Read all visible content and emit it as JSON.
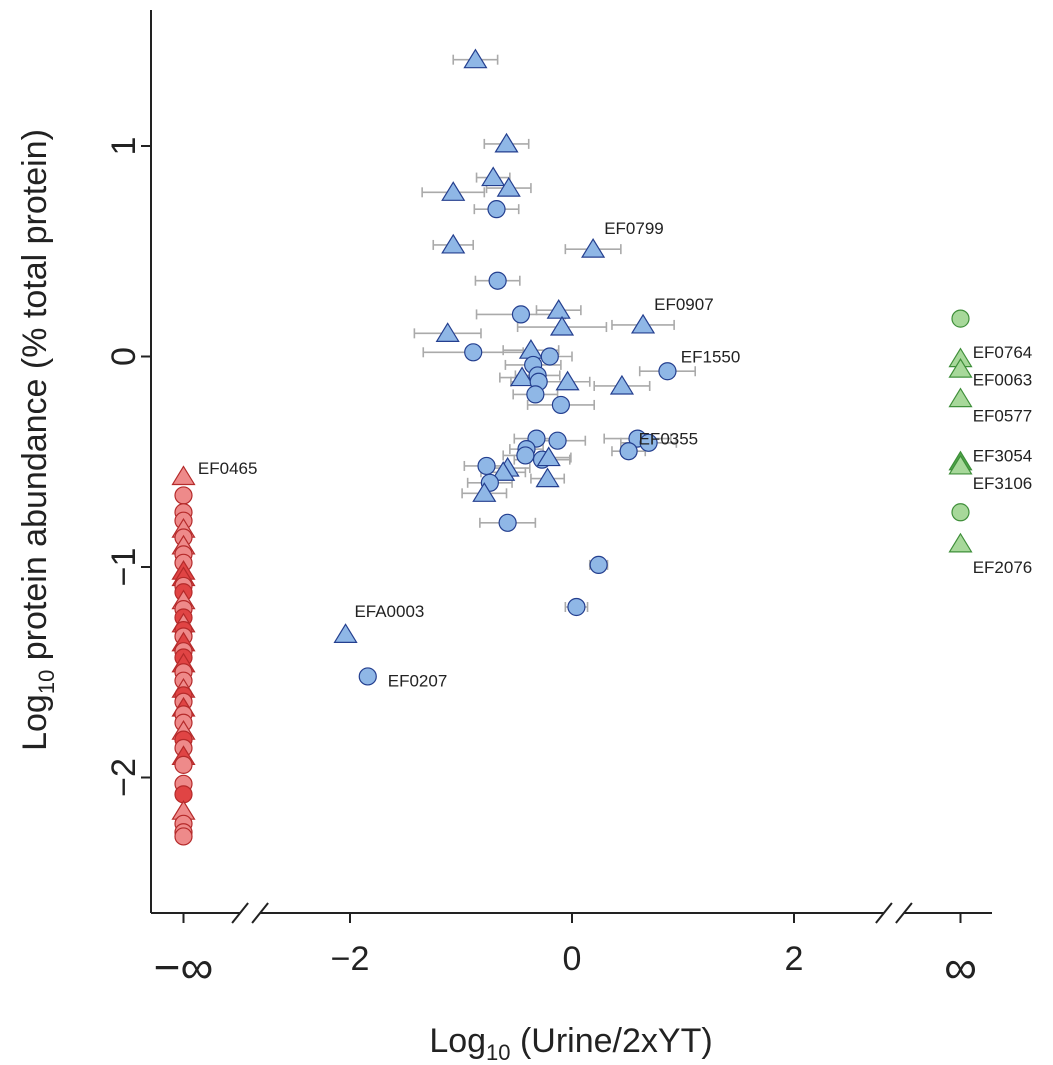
{
  "chart_data": {
    "type": "scatter",
    "title": "",
    "xlabel": {
      "main": "Log",
      "sub": "10",
      "rest": " (Urine/2xYT)"
    },
    "ylabel": {
      "main": "Log",
      "sub": "10",
      "rest": " protein abundance (% total protein)"
    },
    "xlim": [
      -3.5,
      3.8
    ],
    "ylim": [
      -2.65,
      1.7
    ],
    "x_ticks": [
      -2,
      0,
      2
    ],
    "x_tick_labels": [
      "−2",
      "0",
      "2"
    ],
    "y_ticks": [
      1,
      0,
      -1,
      -2
    ],
    "y_tick_labels": [
      "1",
      "0",
      "−1",
      "−2"
    ],
    "x_special_ticks": [
      {
        "x": -3.5,
        "label": "−∞"
      },
      {
        "x": 3.5,
        "label": "∞"
      }
    ],
    "axis_breaks": [
      -2.9,
      2.9
    ],
    "colors": {
      "blue_fill": "#8fb7e6",
      "blue_stroke": "#243f8f",
      "red_fill": "#ee8a8a",
      "red_stroke": "#b52a2a",
      "red_dark_fill": "#e04444",
      "green_fill": "#a7d89a",
      "green_stroke": "#3f8f3a",
      "green_dark_fill": "#4ea74a",
      "errorbar": "#aaaaaa"
    },
    "series": [
      {
        "group": "finite",
        "points": [
          {
            "x": -0.87,
            "y": 1.41,
            "shape": "triangle",
            "err": 0.2
          },
          {
            "x": -0.59,
            "y": 1.01,
            "shape": "triangle",
            "err": 0.2
          },
          {
            "x": -0.71,
            "y": 0.85,
            "shape": "triangle",
            "err": 0.15
          },
          {
            "x": -0.57,
            "y": 0.8,
            "shape": "triangle",
            "err": 0.2
          },
          {
            "x": -1.07,
            "y": 0.78,
            "shape": "triangle",
            "err": 0.28
          },
          {
            "x": -0.68,
            "y": 0.7,
            "shape": "circle",
            "err": 0.2
          },
          {
            "x": -1.07,
            "y": 0.53,
            "shape": "triangle",
            "err": 0.18
          },
          {
            "x": 0.19,
            "y": 0.51,
            "shape": "triangle",
            "err": 0.25
          },
          {
            "x": -0.67,
            "y": 0.36,
            "shape": "circle",
            "err": 0.2
          },
          {
            "x": -0.12,
            "y": 0.22,
            "shape": "triangle",
            "err": 0.2
          },
          {
            "x": -0.46,
            "y": 0.2,
            "shape": "circle",
            "err": 0.4
          },
          {
            "x": 0.64,
            "y": 0.15,
            "shape": "triangle",
            "err": 0.28
          },
          {
            "x": -0.09,
            "y": 0.14,
            "shape": "triangle",
            "err": 0.4
          },
          {
            "x": -1.12,
            "y": 0.11,
            "shape": "triangle",
            "err": 0.3
          },
          {
            "x": -0.89,
            "y": 0.02,
            "shape": "circle",
            "err": 0.45
          },
          {
            "x": -0.37,
            "y": 0.03,
            "shape": "triangle",
            "err": 0.25
          },
          {
            "x": -0.2,
            "y": 0.0,
            "shape": "circle",
            "err": 0.2
          },
          {
            "x": -0.35,
            "y": -0.04,
            "shape": "circle",
            "err": 0.25
          },
          {
            "x": 0.86,
            "y": -0.07,
            "shape": "circle",
            "err": 0.25
          },
          {
            "x": -0.31,
            "y": -0.09,
            "shape": "circle",
            "err": 0.2
          },
          {
            "x": -0.45,
            "y": -0.1,
            "shape": "triangle",
            "err": 0.2
          },
          {
            "x": -0.3,
            "y": -0.12,
            "shape": "circle",
            "err": 0.25
          },
          {
            "x": -0.04,
            "y": -0.12,
            "shape": "triangle",
            "err": 0.2
          },
          {
            "x": 0.45,
            "y": -0.14,
            "shape": "triangle",
            "err": 0.25
          },
          {
            "x": -0.33,
            "y": -0.18,
            "shape": "circle",
            "err": 0.2
          },
          {
            "x": -0.1,
            "y": -0.23,
            "shape": "circle",
            "err": 0.3
          },
          {
            "x": -0.32,
            "y": -0.39,
            "shape": "circle",
            "err": 0.2
          },
          {
            "x": -0.13,
            "y": -0.4,
            "shape": "circle",
            "err": 0.25
          },
          {
            "x": 0.59,
            "y": -0.39,
            "shape": "circle",
            "err": 0.3
          },
          {
            "x": 0.69,
            "y": -0.41,
            "shape": "circle",
            "err": 0.25
          },
          {
            "x": -0.41,
            "y": -0.44,
            "shape": "circle",
            "err": 0.15
          },
          {
            "x": 0.51,
            "y": -0.45,
            "shape": "circle",
            "err": 0.15
          },
          {
            "x": -0.42,
            "y": -0.47,
            "shape": "circle",
            "err": 0.2
          },
          {
            "x": -0.27,
            "y": -0.49,
            "shape": "circle",
            "err": 0.25
          },
          {
            "x": -0.21,
            "y": -0.48,
            "shape": "triangle",
            "err": 0.2
          },
          {
            "x": -0.77,
            "y": -0.52,
            "shape": "circle",
            "err": 0.2
          },
          {
            "x": -0.58,
            "y": -0.53,
            "shape": "triangle",
            "err": 0.2
          },
          {
            "x": -0.62,
            "y": -0.55,
            "shape": "triangle",
            "err": 0.2
          },
          {
            "x": -0.22,
            "y": -0.58,
            "shape": "triangle",
            "err": 0.15
          },
          {
            "x": -0.74,
            "y": -0.6,
            "shape": "circle",
            "err": 0.2
          },
          {
            "x": -0.79,
            "y": -0.65,
            "shape": "triangle",
            "err": 0.2
          },
          {
            "x": -0.58,
            "y": -0.79,
            "shape": "circle",
            "err": 0.25
          },
          {
            "x": 0.24,
            "y": -0.99,
            "shape": "circle",
            "err": 0.08
          },
          {
            "x": 0.04,
            "y": -1.19,
            "shape": "circle",
            "err": 0.1
          },
          {
            "x": -2.04,
            "y": -1.32,
            "shape": "triangle",
            "err": 0
          },
          {
            "x": -1.84,
            "y": -1.52,
            "shape": "circle",
            "err": 0.03
          }
        ]
      },
      {
        "group": "urine_only",
        "x": 3.5,
        "points": [
          {
            "y": 0.18,
            "shape": "circle"
          },
          {
            "y": -0.01,
            "shape": "triangle"
          },
          {
            "y": -0.06,
            "shape": "triangle"
          },
          {
            "y": -0.2,
            "shape": "triangle"
          },
          {
            "y": -0.5,
            "shape": "triangle",
            "dark": true
          },
          {
            "y": -0.52,
            "shape": "triangle"
          },
          {
            "y": -0.74,
            "shape": "circle"
          },
          {
            "y": -0.89,
            "shape": "triangle"
          }
        ]
      },
      {
        "group": "2xyt_only",
        "x": -3.5,
        "points": [
          {
            "y": -0.57,
            "shape": "triangle"
          },
          {
            "y": -0.66,
            "shape": "circle"
          },
          {
            "y": -0.74,
            "shape": "circle"
          },
          {
            "y": -0.78,
            "shape": "circle"
          },
          {
            "y": -0.82,
            "shape": "triangle"
          },
          {
            "y": -0.86,
            "shape": "circle"
          },
          {
            "y": -0.9,
            "shape": "triangle"
          },
          {
            "y": -0.94,
            "shape": "circle"
          },
          {
            "y": -0.98,
            "shape": "circle"
          },
          {
            "y": -1.02,
            "shape": "triangle",
            "dark": true
          },
          {
            "y": -1.05,
            "shape": "triangle",
            "dark": true
          },
          {
            "y": -1.09,
            "shape": "circle"
          },
          {
            "y": -1.12,
            "shape": "circle",
            "dark": true
          },
          {
            "y": -1.16,
            "shape": "triangle"
          },
          {
            "y": -1.2,
            "shape": "circle"
          },
          {
            "y": -1.24,
            "shape": "circle",
            "dark": true
          },
          {
            "y": -1.27,
            "shape": "triangle"
          },
          {
            "y": -1.3,
            "shape": "circle",
            "dark": true
          },
          {
            "y": -1.33,
            "shape": "circle"
          },
          {
            "y": -1.36,
            "shape": "triangle",
            "dark": true
          },
          {
            "y": -1.4,
            "shape": "circle"
          },
          {
            "y": -1.43,
            "shape": "circle",
            "dark": true
          },
          {
            "y": -1.46,
            "shape": "triangle",
            "dark": true
          },
          {
            "y": -1.5,
            "shape": "circle"
          },
          {
            "y": -1.54,
            "shape": "circle"
          },
          {
            "y": -1.58,
            "shape": "triangle"
          },
          {
            "y": -1.61,
            "shape": "circle",
            "dark": true
          },
          {
            "y": -1.64,
            "shape": "circle"
          },
          {
            "y": -1.67,
            "shape": "triangle",
            "dark": true
          },
          {
            "y": -1.7,
            "shape": "circle"
          },
          {
            "y": -1.74,
            "shape": "circle"
          },
          {
            "y": -1.78,
            "shape": "triangle"
          },
          {
            "y": -1.82,
            "shape": "circle",
            "dark": true
          },
          {
            "y": -1.86,
            "shape": "circle"
          },
          {
            "y": -1.9,
            "shape": "triangle",
            "dark": true
          },
          {
            "y": -1.94,
            "shape": "circle"
          },
          {
            "y": -2.03,
            "shape": "circle"
          },
          {
            "y": -2.08,
            "shape": "circle",
            "dark": true
          },
          {
            "y": -2.16,
            "shape": "triangle"
          },
          {
            "y": -2.22,
            "shape": "circle"
          },
          {
            "y": -2.26,
            "shape": "circle"
          },
          {
            "y": -2.28,
            "shape": "circle"
          }
        ]
      }
    ],
    "annotations": [
      {
        "text": "EF0799",
        "x": 0.29,
        "y": 0.61
      },
      {
        "text": "EF0907",
        "x": 0.74,
        "y": 0.25
      },
      {
        "text": "EF1550",
        "x": 0.98,
        "y": 0.0
      },
      {
        "text": "EF0355",
        "x": 0.6,
        "y": -0.39
      },
      {
        "text": "EFA0003",
        "x": -1.96,
        "y": -1.21
      },
      {
        "text": "EF0207",
        "x": -1.66,
        "y": -1.54
      },
      {
        "text": "EF0465",
        "x": -3.37,
        "y": -0.53
      },
      {
        "text": "EF0764",
        "x": 3.61,
        "y": 0.02
      },
      {
        "text": "EF0063",
        "x": 3.61,
        "y": -0.11
      },
      {
        "text": "EF0577",
        "x": 3.61,
        "y": -0.28
      },
      {
        "text": "EF3054",
        "x": 3.61,
        "y": -0.47
      },
      {
        "text": "EF3106",
        "x": 3.61,
        "y": -0.6
      },
      {
        "text": "EF2076",
        "x": 3.61,
        "y": -1.0
      }
    ]
  }
}
